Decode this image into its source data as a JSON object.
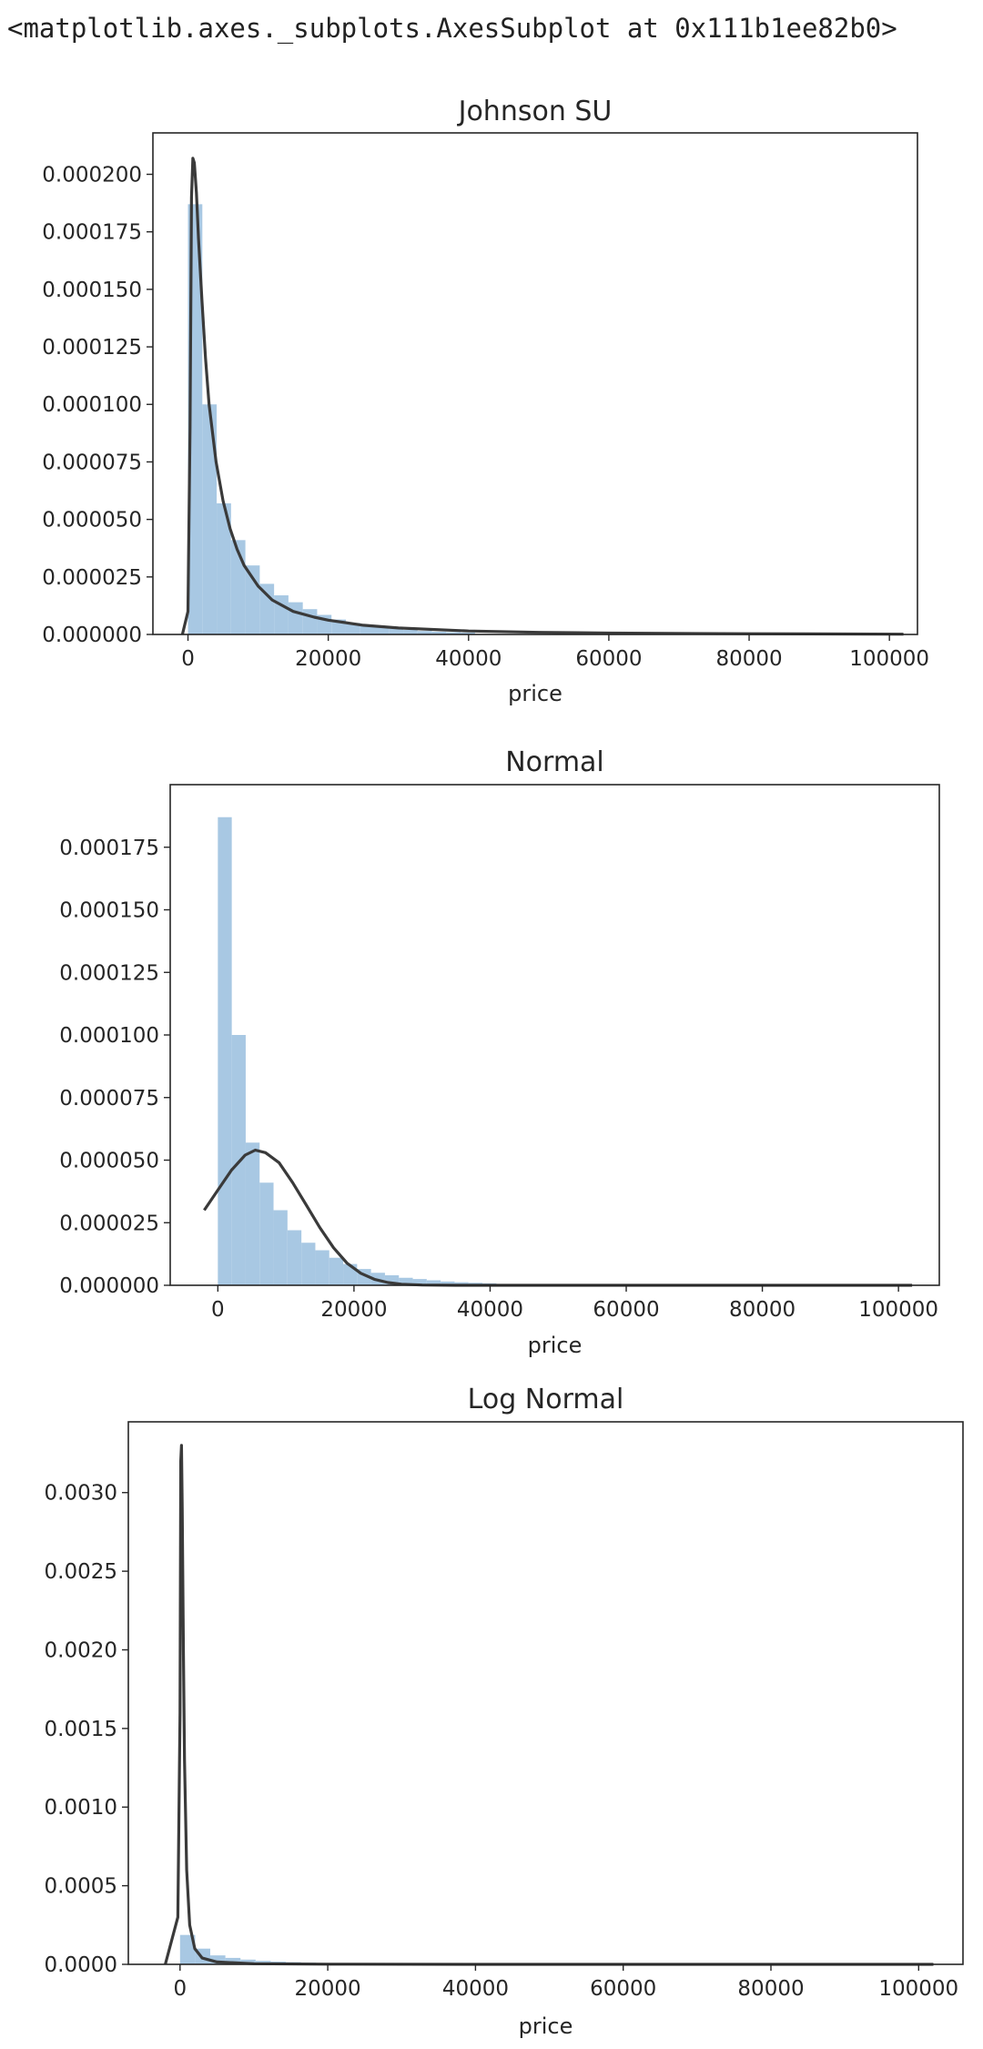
{
  "output_text": "<matplotlib.axes._subplots.AxesSubplot at 0x111b1ee82b0>",
  "colors": {
    "bar": "#a8c8e3",
    "curve": "#3a3a3a",
    "frame": "#262626"
  },
  "chart_data": [
    {
      "type": "bar",
      "title": "Johnson SU",
      "xlabel": "price",
      "ylabel": "",
      "xlim": [
        -5000,
        104000
      ],
      "ylim": [
        0,
        0.000218
      ],
      "xticks": [
        0,
        20000,
        40000,
        60000,
        80000,
        100000
      ],
      "xtick_labels": [
        "0",
        "20000",
        "40000",
        "60000",
        "80000",
        "100000"
      ],
      "yticks": [
        0,
        2.5e-05,
        5e-05,
        7.5e-05,
        0.0001,
        0.000125,
        0.00015,
        0.000175,
        0.0002
      ],
      "ytick_labels": [
        "0.000000",
        "0.000025",
        "0.000050",
        "0.000075",
        "0.000100",
        "0.000125",
        "0.000150",
        "0.000175",
        "0.000200"
      ],
      "grid": false,
      "histogram": {
        "bin_width": 2046,
        "bin_starts": [
          0,
          2046,
          4092,
          6138,
          8184,
          10230,
          12276,
          14322,
          16368,
          18414,
          20460,
          22506,
          24552,
          26598,
          28644,
          30690,
          32736,
          34782,
          36828,
          38874
        ],
        "values": [
          0.000187,
          0.0001,
          5.7e-05,
          4.1e-05,
          3e-05,
          2.2e-05,
          1.7e-05,
          1.4e-05,
          1.1e-05,
          8.5e-06,
          6.5e-06,
          5e-06,
          4e-06,
          3e-06,
          2.5e-06,
          2e-06,
          1.5e-06,
          1.2e-06,
          1e-06,
          8e-07
        ]
      },
      "curve": {
        "name": "",
        "x": [
          -800,
          0,
          300,
          500,
          700,
          900,
          1200,
          1500,
          2000,
          2500,
          3000,
          4000,
          5000,
          6000,
          7000,
          8000,
          10000,
          12000,
          15000,
          18000,
          20000,
          25000,
          30000,
          40000,
          50000,
          60000,
          80000,
          102000
        ],
        "y": [
          0,
          1e-05,
          9e-05,
          0.00019,
          0.000207,
          0.000205,
          0.000192,
          0.000172,
          0.000145,
          0.00012,
          0.0001,
          7.5e-05,
          5.8e-05,
          4.6e-05,
          3.7e-05,
          3e-05,
          2.1e-05,
          1.5e-05,
          1e-05,
          7.5e-06,
          6.2e-06,
          4e-06,
          2.8e-06,
          1.5e-06,
          9e-07,
          6e-07,
          3e-07,
          1e-07
        ]
      }
    },
    {
      "type": "bar",
      "title": "Normal",
      "xlabel": "price",
      "ylabel": "",
      "xlim": [
        -7000,
        106000
      ],
      "ylim": [
        0,
        0.0002
      ],
      "xticks": [
        0,
        20000,
        40000,
        60000,
        80000,
        100000
      ],
      "xtick_labels": [
        "0",
        "20000",
        "40000",
        "60000",
        "80000",
        "100000"
      ],
      "yticks": [
        0,
        2.5e-05,
        5e-05,
        7.5e-05,
        0.0001,
        0.000125,
        0.00015,
        0.000175
      ],
      "ytick_labels": [
        "0.000000",
        "0.000025",
        "0.000050",
        "0.000075",
        "0.000100",
        "0.000125",
        "0.000150",
        "0.000175"
      ],
      "grid": false,
      "histogram": {
        "bin_width": 2046,
        "bin_starts": [
          0,
          2046,
          4092,
          6138,
          8184,
          10230,
          12276,
          14322,
          16368,
          18414,
          20460,
          22506,
          24552,
          26598,
          28644,
          30690,
          32736,
          34782,
          36828,
          38874
        ],
        "values": [
          0.000187,
          0.0001,
          5.7e-05,
          4.1e-05,
          3e-05,
          2.2e-05,
          1.7e-05,
          1.4e-05,
          1.1e-05,
          8.5e-06,
          6.5e-06,
          5e-06,
          4e-06,
          3e-06,
          2.5e-06,
          2e-06,
          1.5e-06,
          1.2e-06,
          1e-06,
          8e-07
        ]
      },
      "curve": {
        "name": "",
        "x": [
          -2000,
          0,
          2000,
          4000,
          5500,
          7000,
          9000,
          11000,
          13000,
          15000,
          17000,
          19000,
          21000,
          23000,
          25000,
          27000,
          30000,
          35000,
          40000,
          60000,
          80000,
          102000
        ],
        "y": [
          3e-05,
          3.8e-05,
          4.6e-05,
          5.2e-05,
          5.4e-05,
          5.3e-05,
          4.9e-05,
          4.1e-05,
          3.2e-05,
          2.3e-05,
          1.5e-05,
          8.8e-06,
          4.8e-06,
          2.4e-06,
          1.1e-06,
          4.5e-07,
          1e-07,
          0.0,
          0.0,
          0.0,
          0.0,
          0.0
        ]
      }
    },
    {
      "type": "bar",
      "title": "Log Normal",
      "xlabel": "price",
      "ylabel": "",
      "xlim": [
        -7000,
        106000
      ],
      "ylim": [
        0,
        0.00345
      ],
      "xticks": [
        0,
        20000,
        40000,
        60000,
        80000,
        100000
      ],
      "xtick_labels": [
        "0",
        "20000",
        "40000",
        "60000",
        "80000",
        "100000"
      ],
      "yticks": [
        0,
        0.0005,
        0.001,
        0.0015,
        0.002,
        0.0025,
        0.003
      ],
      "ytick_labels": [
        "0.0000",
        "0.0005",
        "0.0010",
        "0.0015",
        "0.0020",
        "0.0025",
        "0.0030"
      ],
      "grid": false,
      "histogram": {
        "bin_width": 2046,
        "bin_starts": [
          0,
          2046,
          4092,
          6138,
          8184,
          10230,
          12276,
          14322,
          16368,
          18414,
          20460,
          22506,
          24552,
          26598,
          28644,
          30690,
          32736,
          34782,
          36828,
          38874
        ],
        "values": [
          0.000187,
          0.0001,
          5.7e-05,
          4.1e-05,
          3e-05,
          2.2e-05,
          1.7e-05,
          1.4e-05,
          1.1e-05,
          8.5e-06,
          6.5e-06,
          5e-06,
          4e-06,
          3e-06,
          2.5e-06,
          2e-06,
          1.5e-06,
          1.2e-06,
          1e-06,
          8e-07
        ]
      },
      "curve": {
        "name": "",
        "x": [
          -2000,
          -300,
          0,
          100,
          200,
          300,
          450,
          600,
          900,
          1300,
          2000,
          3000,
          5000,
          10000,
          20000,
          40000,
          60000,
          80000,
          102000
        ],
        "y": [
          0,
          0.0003,
          0.0016,
          0.0032,
          0.0033,
          0.0029,
          0.002,
          0.0013,
          0.0006,
          0.00025,
          0.0001,
          4e-05,
          1.5e-05,
          4e-06,
          1e-06,
          0.0,
          0.0,
          0.0,
          0.0
        ]
      }
    }
  ]
}
